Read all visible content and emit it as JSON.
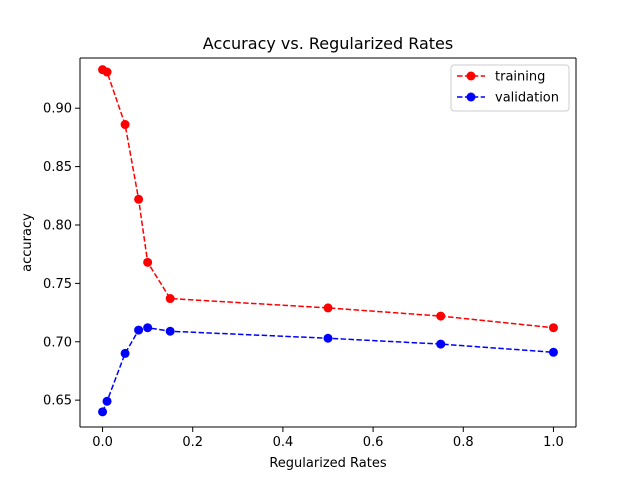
{
  "chart_data": {
    "type": "line",
    "title": "Accuracy vs. Regularized Rates",
    "xlabel": "Regularized Rates",
    "ylabel": "accuracy",
    "x": [
      0.0,
      0.01,
      0.05,
      0.08,
      0.1,
      0.15,
      0.5,
      0.75,
      1.0
    ],
    "xlim": [
      -0.05,
      1.05
    ],
    "ylim": [
      0.627,
      0.943
    ],
    "xticks": [
      0.0,
      0.2,
      0.4,
      0.6,
      0.8,
      1.0
    ],
    "xtick_labels": [
      "0.0",
      "0.2",
      "0.4",
      "0.6",
      "0.8",
      "1.0"
    ],
    "yticks": [
      0.65,
      0.7,
      0.75,
      0.8,
      0.85,
      0.9
    ],
    "ytick_labels": [
      "0.65",
      "0.70",
      "0.75",
      "0.80",
      "0.85",
      "0.90"
    ],
    "grid": false,
    "legend_position": "top-right",
    "series": [
      {
        "name": "training",
        "color": "#ff0000",
        "linestyle": "dashed",
        "marker": "circle",
        "values": [
          0.933,
          0.931,
          0.886,
          0.822,
          0.768,
          0.737,
          0.729,
          0.722,
          0.712
        ]
      },
      {
        "name": "validation",
        "color": "#0000ff",
        "linestyle": "dashed",
        "marker": "circle",
        "values": [
          0.64,
          0.649,
          0.69,
          0.71,
          0.712,
          0.709,
          0.703,
          0.698,
          0.691
        ]
      }
    ]
  }
}
